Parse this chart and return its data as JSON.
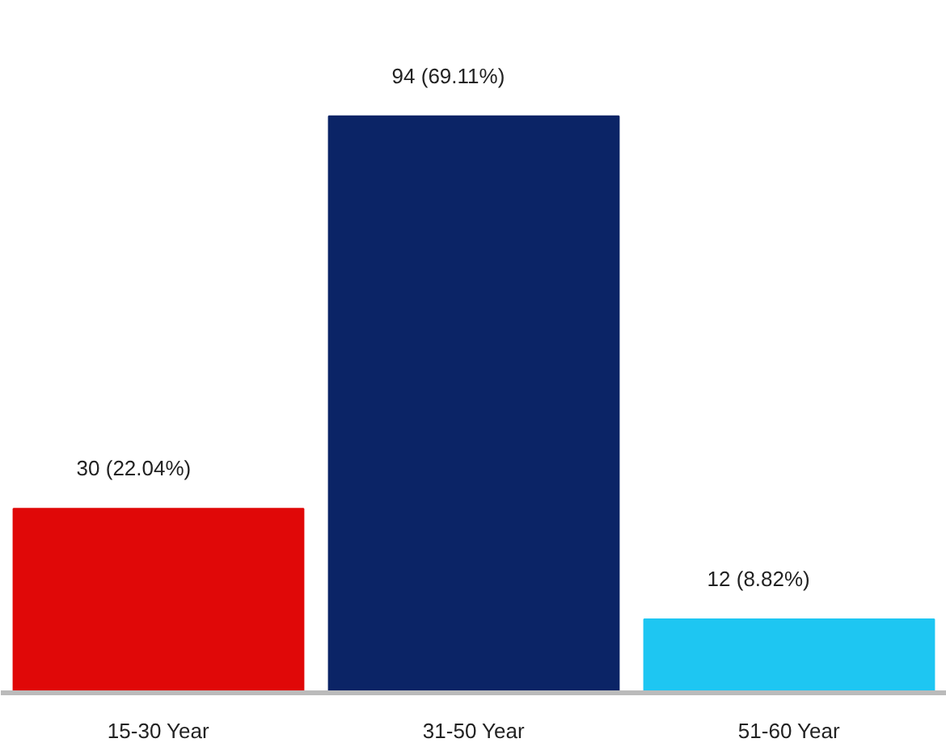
{
  "chart_data": {
    "type": "bar",
    "categories": [
      "15-30 Year",
      "31-50 Year",
      "51-60 Year"
    ],
    "values": [
      30,
      94,
      12
    ],
    "colors": [
      "#e00808",
      "#0b2466",
      "#1ec6f2"
    ],
    "value_labels": [
      "30 (22.04%)",
      "94 (69.11%)",
      "12 (8.82%)"
    ],
    "grid": false
  }
}
